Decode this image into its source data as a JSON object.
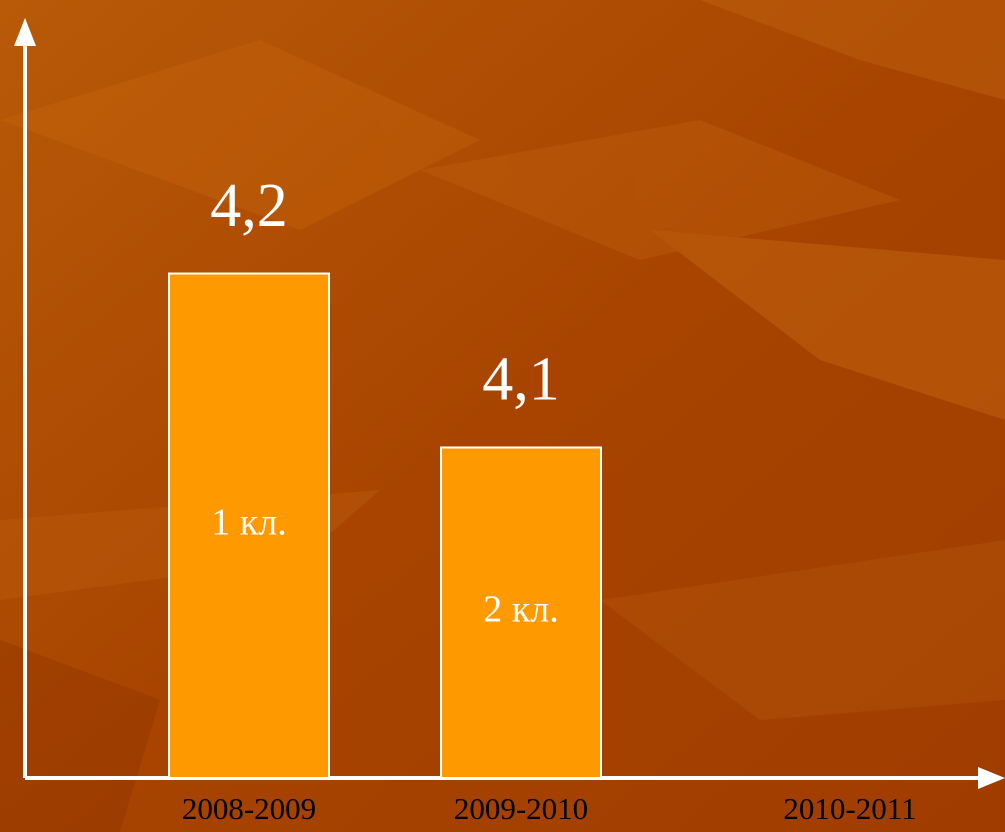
{
  "chart_data": {
    "type": "bar",
    "categories": [
      "2008-2009",
      "2009-2010",
      "2010-2011"
    ],
    "values": [
      4.2,
      4.1,
      null
    ],
    "value_labels": [
      "4,2",
      "4,1",
      null
    ],
    "bar_labels": [
      "1 кл.",
      "2 кл.",
      null
    ],
    "color": "#ff9900",
    "ylim": [
      3.91,
      4.34
    ]
  }
}
